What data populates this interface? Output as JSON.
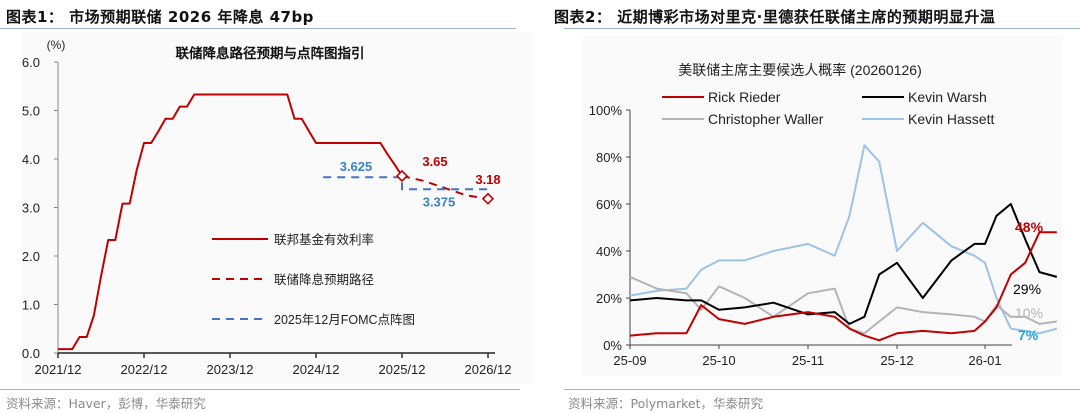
{
  "left_panel": {
    "figure_title": "图表1： 市场预期联储 2026 年降息 47bp",
    "source": "资料来源：Haver，彭博，华泰研究"
  },
  "right_panel": {
    "figure_title": "图表2： 近期博彩市场对里克·里德获任联储主席的预期明显升温",
    "source": "资料来源：Polymarket，华泰研究"
  },
  "colors": {
    "red": "#c00000",
    "blue_dash": "#4472c4",
    "label_blue": "#3c82c4",
    "black": "#000000",
    "gray": "#b4b4b4",
    "light_blue": "#9dc3e6",
    "label_cyan": "#1fa5e0",
    "rule": "#9db3cf"
  },
  "chart_data": [
    {
      "type": "line",
      "title": "联储降息路径预期与点阵图指引",
      "ylabel": "(%)",
      "xlabel": "",
      "ylim": [
        0.0,
        6.0
      ],
      "yticks": [
        "0.0",
        "1.0",
        "2.0",
        "3.0",
        "4.0",
        "5.0",
        "6.0"
      ],
      "xticks": [
        "2021/12",
        "2022/12",
        "2023/12",
        "2024/12",
        "2025/12",
        "2026/12"
      ],
      "grid": false,
      "legend_position": "inside-right-middle",
      "series": [
        {
          "name": "联邦基金有效利率",
          "style": "solid",
          "color": "#c00000",
          "x": [
            "2021/12",
            "2022/02",
            "2022/03",
            "2022/04",
            "2022/05",
            "2022/06",
            "2022/07",
            "2022/08",
            "2022/09",
            "2022/10",
            "2022/11",
            "2022/12",
            "2023/01",
            "2023/02",
            "2023/03",
            "2023/04",
            "2023/05",
            "2023/06",
            "2023/07",
            "2023/08",
            "2024/01",
            "2024/06",
            "2024/08",
            "2024/09",
            "2024/10",
            "2024/11",
            "2024/12",
            "2025/03",
            "2025/06",
            "2025/09",
            "2025/10",
            "2025/11",
            "2025/12"
          ],
          "values": [
            0.08,
            0.08,
            0.33,
            0.33,
            0.77,
            1.58,
            2.33,
            2.33,
            3.08,
            3.08,
            3.78,
            4.33,
            4.33,
            4.57,
            4.83,
            4.83,
            5.08,
            5.08,
            5.33,
            5.33,
            5.33,
            5.33,
            5.33,
            4.83,
            4.83,
            4.58,
            4.33,
            4.33,
            4.33,
            4.33,
            4.09,
            3.88,
            3.65
          ]
        },
        {
          "name": "联储降息预期路径",
          "style": "dashed",
          "color": "#c00000",
          "x": [
            "2025/12",
            "2026/03",
            "2026/06",
            "2026/09",
            "2026/12"
          ],
          "values": [
            3.65,
            3.55,
            3.4,
            3.25,
            3.18
          ]
        },
        {
          "name": "2025年12月FOMC点阵图",
          "style": "dashed",
          "color": "#4472c4",
          "x": [
            "2025/01",
            "2025/12",
            "2025/12",
            "2026/12"
          ],
          "values": [
            3.625,
            3.625,
            3.375,
            3.375
          ]
        }
      ],
      "annotations": [
        {
          "text": "3.625",
          "color": "#3c82c4",
          "at": "2025/12",
          "value": 3.625
        },
        {
          "text": "3.375",
          "color": "#3c82c4",
          "at": "2026/06",
          "value": 3.375
        },
        {
          "text": "3.65",
          "color": "#c00000",
          "at": "2025/12",
          "value": 3.65
        },
        {
          "text": "3.18",
          "color": "#c00000",
          "at": "2026/12",
          "value": 3.18
        }
      ],
      "markers": [
        {
          "shape": "diamond",
          "at": "2025/12",
          "value": 3.65
        },
        {
          "shape": "diamond",
          "at": "2026/12",
          "value": 3.18
        }
      ]
    },
    {
      "type": "line",
      "title": "美联储主席主要候选人概率 (20260126)",
      "xlabel": "",
      "ylabel": "",
      "ylim": [
        0,
        100
      ],
      "yticks": [
        "0%",
        "20%",
        "40%",
        "60%",
        "80%",
        "100%"
      ],
      "xticks": [
        "25-09",
        "25-10",
        "25-11",
        "25-12",
        "26-01"
      ],
      "grid": false,
      "legend_position": "top",
      "x": [
        "09-01",
        "09-10",
        "09-20",
        "09-25",
        "10-01",
        "10-10",
        "10-20",
        "11-01",
        "11-10",
        "11-15",
        "11-20",
        "11-25",
        "12-01",
        "12-10",
        "12-20",
        "12-28",
        "01-01",
        "01-05",
        "01-10",
        "01-15",
        "01-20",
        "01-26"
      ],
      "series": [
        {
          "name": "Rick Rieder",
          "color": "#c00000",
          "values": [
            4,
            5,
            5,
            17,
            11,
            9,
            12,
            14,
            12,
            7,
            4,
            2,
            5,
            6,
            5,
            6,
            10,
            16,
            30,
            35,
            48,
            48
          ]
        },
        {
          "name": "Kevin Warsh",
          "color": "#000000",
          "values": [
            19,
            20,
            19,
            19,
            15,
            16,
            18,
            13,
            14,
            9,
            12,
            30,
            35,
            20,
            36,
            43,
            43,
            55,
            60,
            45,
            31,
            29
          ]
        },
        {
          "name": "Christopher Waller",
          "color": "#b4b4b4",
          "values": [
            29,
            24,
            22,
            15,
            25,
            20,
            12,
            22,
            24,
            7,
            5,
            10,
            16,
            14,
            13,
            12,
            10,
            17,
            12,
            12,
            9,
            10
          ]
        },
        {
          "name": "Kevin Hassett",
          "color": "#9dc3e6",
          "values": [
            21,
            23,
            24,
            32,
            36,
            36,
            40,
            43,
            38,
            55,
            85,
            78,
            40,
            52,
            42,
            38,
            35,
            20,
            7,
            6,
            5,
            7
          ]
        }
      ],
      "end_labels": [
        {
          "text": "48%",
          "color": "#c00000"
        },
        {
          "text": "29%",
          "color": "#000000"
        },
        {
          "text": "10%",
          "color": "#b4b4b4"
        },
        {
          "text": "7%",
          "color": "#1fa5e0"
        }
      ]
    }
  ]
}
